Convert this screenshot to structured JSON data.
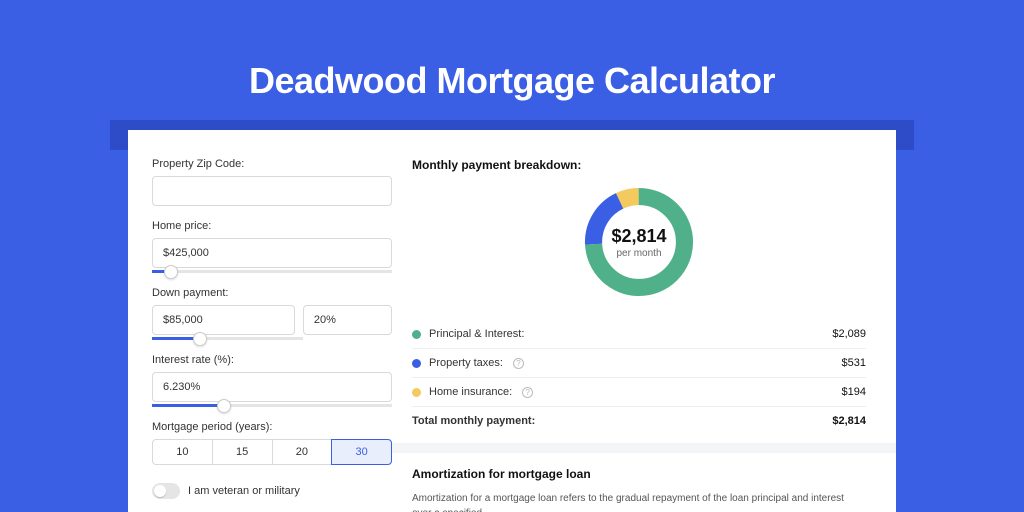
{
  "page": {
    "title": "Deadwood Mortgage Calculator",
    "bg_color": "#3a5fe5",
    "card_bg": "#ffffff"
  },
  "form": {
    "zip": {
      "label": "Property Zip Code:",
      "value": ""
    },
    "home_price": {
      "label": "Home price:",
      "value": "$425,000",
      "slider_pct": 8
    },
    "down_payment": {
      "label": "Down payment:",
      "amount": "$85,000",
      "percent": "20%",
      "slider_pct": 20
    },
    "interest_rate": {
      "label": "Interest rate (%):",
      "value": "6.230%",
      "slider_pct": 30
    },
    "period": {
      "label": "Mortgage period (years):",
      "options": [
        "10",
        "15",
        "20",
        "30"
      ],
      "selected": "30"
    },
    "veteran": {
      "label": "I am veteran or military",
      "checked": false
    }
  },
  "breakdown": {
    "title": "Monthly payment breakdown:",
    "center_amount": "$2,814",
    "center_sub": "per month",
    "items": [
      {
        "label": "Principal & Interest:",
        "value": "$2,089",
        "color": "#4fb08a",
        "pct": 74.2,
        "info": false
      },
      {
        "label": "Property taxes:",
        "value": "$531",
        "color": "#3a5fe5",
        "pct": 18.9,
        "info": true
      },
      {
        "label": "Home insurance:",
        "value": "$194",
        "color": "#f4c95d",
        "pct": 6.9,
        "info": true
      }
    ],
    "total": {
      "label": "Total monthly payment:",
      "value": "$2,814"
    }
  },
  "amort": {
    "title": "Amortization for mortgage loan",
    "text": "Amortization for a mortgage loan refers to the gradual repayment of the loan principal and interest over a specified"
  }
}
